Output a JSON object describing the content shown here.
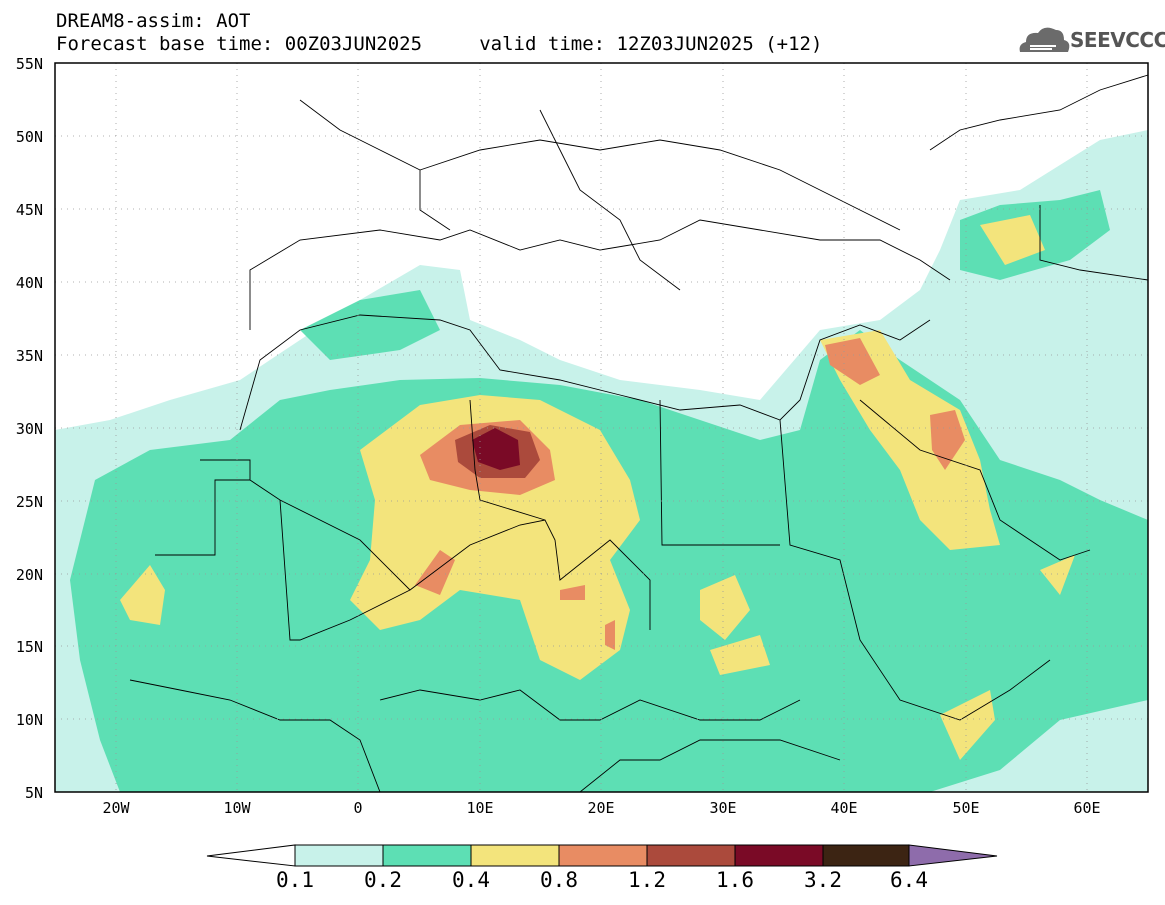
{
  "title": {
    "line1": "DREAM8-assim: AOT",
    "line2": "Forecast base time: 00Z03JUN2025     valid time: 12Z03JUN2025 (+12)"
  },
  "logo": {
    "text": "SEEVCCC",
    "icon": "cloud-icon"
  },
  "map": {
    "lat_range": [
      5,
      55
    ],
    "lon_range": [
      -25,
      65
    ],
    "lat_ticks": [
      "55N",
      "50N",
      "45N",
      "40N",
      "35N",
      "30N",
      "25N",
      "20N",
      "15N",
      "10N",
      "5N"
    ],
    "lon_ticks": [
      "20W",
      "10W",
      "0",
      "10E",
      "20E",
      "30E",
      "40E",
      "50E",
      "60E"
    ],
    "grid": true
  },
  "colorbar": {
    "levels": [
      "0.1",
      "0.2",
      "0.4",
      "0.8",
      "1.2",
      "1.6",
      "3.2",
      "6.4"
    ],
    "colors": [
      "#c8f2ea",
      "#5ddfb4",
      "#f3e47c",
      "#e88c63",
      "#ab4a3c",
      "#7a0a26",
      "#3c2413",
      "#8e6cab"
    ]
  }
}
